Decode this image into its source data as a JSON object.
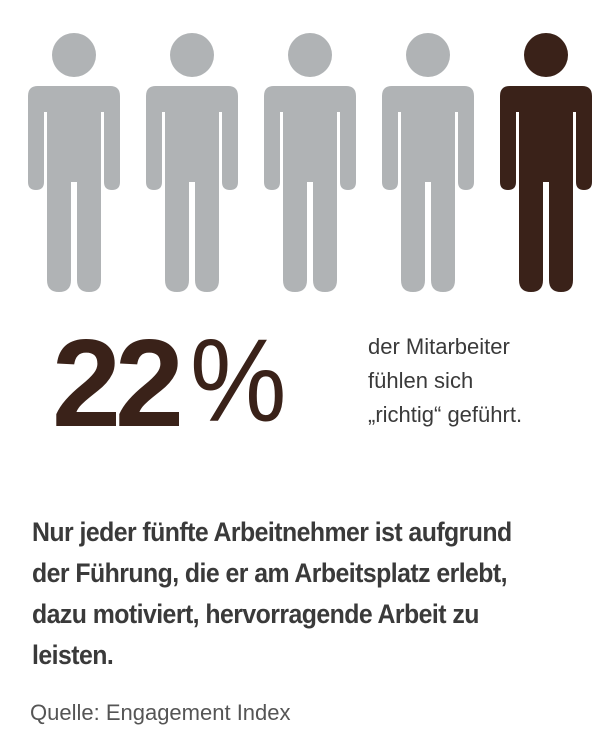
{
  "colors": {
    "figure_default": "#b0b3b5",
    "figure_highlight": "#3a2219",
    "number": "#3a2219",
    "text": "#3a3a3a"
  },
  "figures": {
    "total": 5,
    "highlighted_index": 4,
    "icon": "person-icon"
  },
  "stat": {
    "value": "22",
    "unit": "%",
    "caption_lines": [
      "der Mitarbeiter",
      "fühlen sich",
      "„richtig“ geführt."
    ]
  },
  "headline_lines": [
    "Nur jeder fünfte Arbeitnehmer ist aufgrund",
    "der Führung, die er am Arbeitsplatz erlebt,",
    "dazu motiviert, hervorragende Arbeit zu",
    "leisten."
  ],
  "source": "Quelle: Engagement Index"
}
